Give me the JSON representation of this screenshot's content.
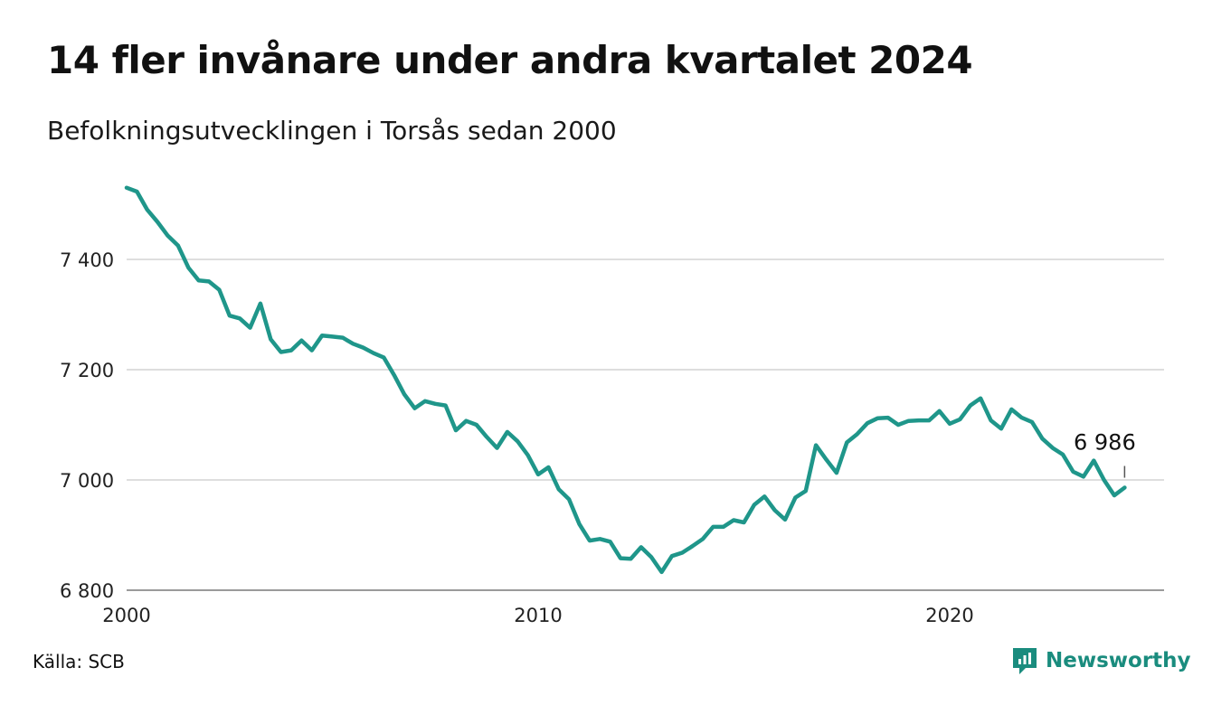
{
  "title": "14 fler invånare under andra kvartalet 2024",
  "subtitle": "Befolkningsutvecklingen i Torsås sedan 2000",
  "source": "Källa: SCB",
  "brand": {
    "name": "Newsworthy",
    "icon": "newsworthy-logo-icon",
    "color": "#1a8c7e"
  },
  "chart_data": {
    "type": "line",
    "title": "14 fler invånare under andra kvartalet 2024",
    "subtitle": "Befolkningsutvecklingen i Torsås sedan 2000",
    "xlabel": "",
    "ylabel": "",
    "x_range": [
      2000,
      2025.25
    ],
    "ylim": [
      6800,
      7600
    ],
    "yticks": [
      6800,
      7000,
      7200,
      7400
    ],
    "ytick_labels": [
      "6 800",
      "7 000",
      "7 200",
      "7 400"
    ],
    "xticks": [
      2000,
      2010,
      2020
    ],
    "xtick_labels": [
      "2000",
      "2010",
      "2020"
    ],
    "grid": true,
    "line_color": "#1f968a",
    "last_value_label": "6 986",
    "series": [
      {
        "start_year": 2000,
        "step": 0.25,
        "values": [
          7530,
          7523,
          7490,
          7468,
          7443,
          7425,
          7385,
          7362,
          7360,
          7345,
          7298,
          7293,
          7276,
          7320,
          7255,
          7232,
          7235,
          7253,
          7235,
          7262,
          7260,
          7258,
          7247,
          7240,
          7230,
          7222,
          7190,
          7155,
          7130,
          7143,
          7138,
          7135,
          7090,
          7107,
          7100,
          7078,
          7058,
          7087,
          7070,
          7045,
          7010,
          7023,
          6983,
          6965,
          6920,
          6890,
          6893,
          6888,
          6858,
          6857,
          6878,
          6860,
          6833,
          6862,
          6868,
          6880,
          6893,
          6915,
          6915,
          6927,
          6923,
          6955,
          6970,
          6945,
          6928,
          6968,
          6980,
          7063,
          7037,
          7013,
          7068,
          7083,
          7103,
          7112,
          7113,
          7100,
          7107,
          7108,
          7108,
          7125,
          7102,
          7110,
          7135,
          7148,
          7108,
          7093,
          7128,
          7113,
          7105,
          7075,
          7058,
          7046,
          7015,
          7006,
          7035,
          7000,
          6972,
          6986
        ]
      }
    ]
  }
}
